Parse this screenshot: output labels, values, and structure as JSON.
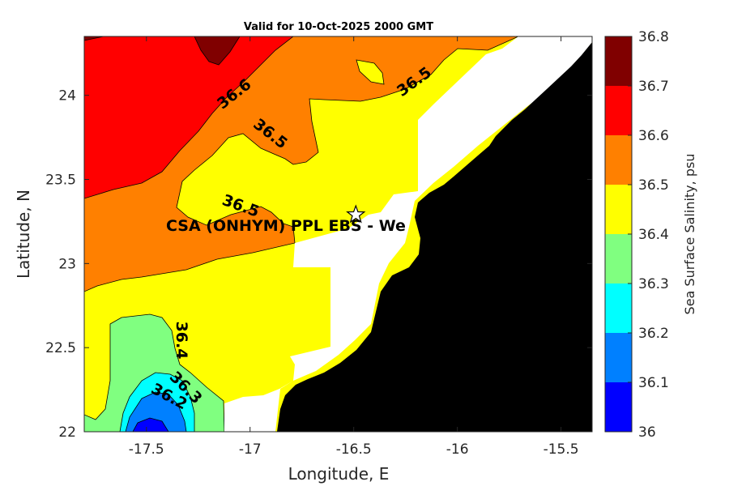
{
  "chart_data": {
    "type": "heatmap",
    "title": "Valid for 10-Oct-2025 2000 GMT",
    "xlabel": "Longitude, E",
    "ylabel": "Latitude, N",
    "xlim": [
      -17.8,
      -15.35
    ],
    "ylim": [
      22.0,
      24.35
    ],
    "xticks": [
      "-17.5",
      "-17",
      "-16.5",
      "-16",
      "-15.5"
    ],
    "xtick_values": [
      -17.5,
      -17,
      -16.5,
      -16,
      -15.5
    ],
    "yticks": [
      "22",
      "22.5",
      "23",
      "23.5",
      "24"
    ],
    "ytick_values": [
      22,
      22.5,
      23,
      23.5,
      24
    ],
    "colorbar": {
      "label": "Sea Surface Salinity, psu",
      "tick_labels": [
        "36",
        "36.1",
        "36.2",
        "36.3",
        "36.4",
        "36.5",
        "36.6",
        "36.7",
        "36.8"
      ],
      "levels": [
        36.0,
        36.1,
        36.2,
        36.3,
        36.4,
        36.5,
        36.6,
        36.7,
        36.8
      ],
      "colors": [
        "#0000ff",
        "#0080ff",
        "#00ffff",
        "#80ff80",
        "#ffff00",
        "#ff8000",
        "#ff0000",
        "#800000"
      ]
    },
    "contour_labels": [
      {
        "text": "36.6",
        "lon": -17.2,
        "lat": 24.0
      },
      {
        "text": "36.5",
        "lon": -16.9,
        "lat": 23.7
      },
      {
        "text": "36.5",
        "lon": -16.2,
        "lat": 24.06
      },
      {
        "text": "36.5",
        "lon": -17.0,
        "lat": 23.33
      },
      {
        "text": "36.4",
        "lon": -17.3,
        "lat": 22.5
      },
      {
        "text": "36.3",
        "lon": -17.3,
        "lat": 22.23
      },
      {
        "text": "36.2",
        "lon": -17.4,
        "lat": 22.19
      }
    ],
    "site": {
      "label": "CSA (ONHYM) PPL EBS  - We",
      "lon": -16.49,
      "lat": 23.29
    },
    "grid": false,
    "land_color": "#000000",
    "nodata_color": "#ffffff"
  }
}
